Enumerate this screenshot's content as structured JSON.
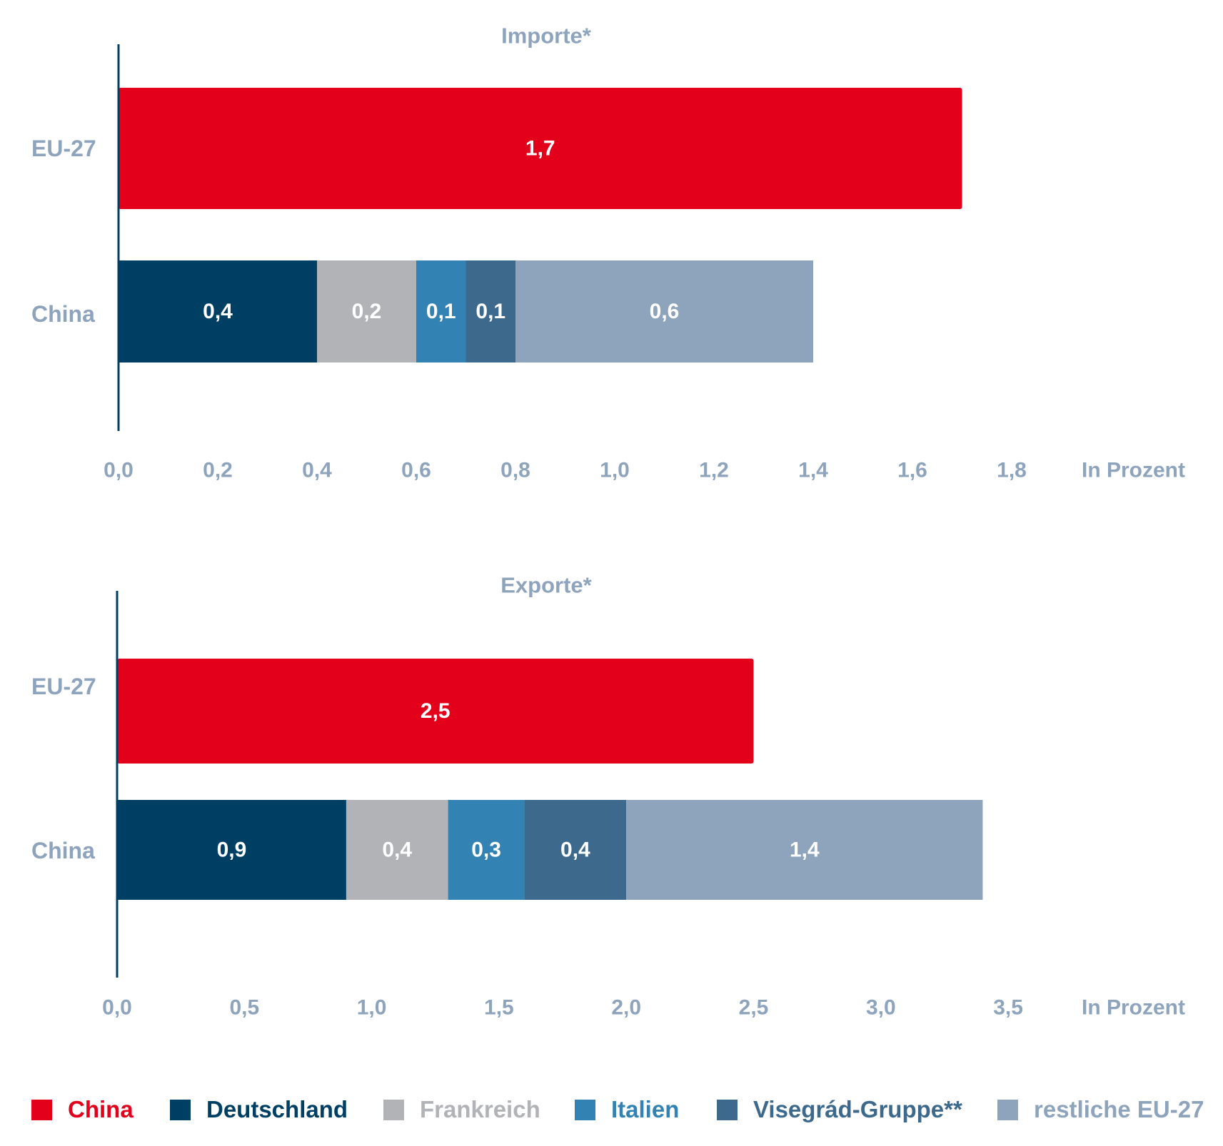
{
  "colors": {
    "China": "#e2001a",
    "Deutschland": "#003f64",
    "Frankreich": "#b1b3b6",
    "Italien": "#3283b3",
    "Visegrad": "#3d6a8c",
    "restliche": "#8ea4bd",
    "axis_text": "#8ea4bd",
    "axis_line": "#003f64",
    "value_on_dark": "#ffffff"
  },
  "chart_data": [
    {
      "type": "bar",
      "orientation": "horizontal",
      "stacked": true,
      "title": "Importe*",
      "xlabel": "In Prozent",
      "xlim": [
        0,
        1.8
      ],
      "xticks": [
        "0,0",
        "0,2",
        "0,4",
        "0,6",
        "0,8",
        "1,0",
        "1,2",
        "1,4",
        "1,6",
        "1,8"
      ],
      "categories": [
        "EU-27",
        "China"
      ],
      "bars": [
        {
          "category": "EU-27",
          "segments": [
            {
              "series": "China",
              "value": 1.7,
              "label": "1,7"
            }
          ]
        },
        {
          "category": "China",
          "segments": [
            {
              "series": "Deutschland",
              "value": 0.4,
              "label": "0,4"
            },
            {
              "series": "Frankreich",
              "value": 0.2,
              "label": "0,2"
            },
            {
              "series": "Italien",
              "value": 0.1,
              "label": "0,1"
            },
            {
              "series": "Visegrad",
              "value": 0.1,
              "label": "0,1"
            },
            {
              "series": "restliche",
              "value": 0.6,
              "label": "0,6"
            }
          ]
        }
      ]
    },
    {
      "type": "bar",
      "orientation": "horizontal",
      "stacked": true,
      "title": "Exporte*",
      "xlabel": "In Prozent",
      "xlim": [
        0,
        3.5
      ],
      "xticks": [
        "0,0",
        "0,5",
        "1,0",
        "1,5",
        "2,0",
        "2,5",
        "3,0",
        "3,5"
      ],
      "categories": [
        "EU-27",
        "China"
      ],
      "bars": [
        {
          "category": "EU-27",
          "segments": [
            {
              "series": "China",
              "value": 2.5,
              "label": "2,5"
            }
          ]
        },
        {
          "category": "China",
          "segments": [
            {
              "series": "Deutschland",
              "value": 0.9,
              "label": "0,9"
            },
            {
              "series": "Frankreich",
              "value": 0.4,
              "label": "0,4"
            },
            {
              "series": "Italien",
              "value": 0.3,
              "label": "0,3"
            },
            {
              "series": "Visegrad",
              "value": 0.4,
              "label": "0,4"
            },
            {
              "series": "restliche",
              "value": 1.4,
              "label": "1,4"
            }
          ]
        }
      ]
    }
  ],
  "legend": [
    {
      "key": "China",
      "label": "China"
    },
    {
      "key": "Deutschland",
      "label": "Deutschland"
    },
    {
      "key": "Frankreich",
      "label": "Frankreich"
    },
    {
      "key": "Italien",
      "label": "Italien"
    },
    {
      "key": "Visegrad",
      "label": "Visegrád-Gruppe**"
    },
    {
      "key": "restliche",
      "label": "restliche EU-27"
    }
  ]
}
